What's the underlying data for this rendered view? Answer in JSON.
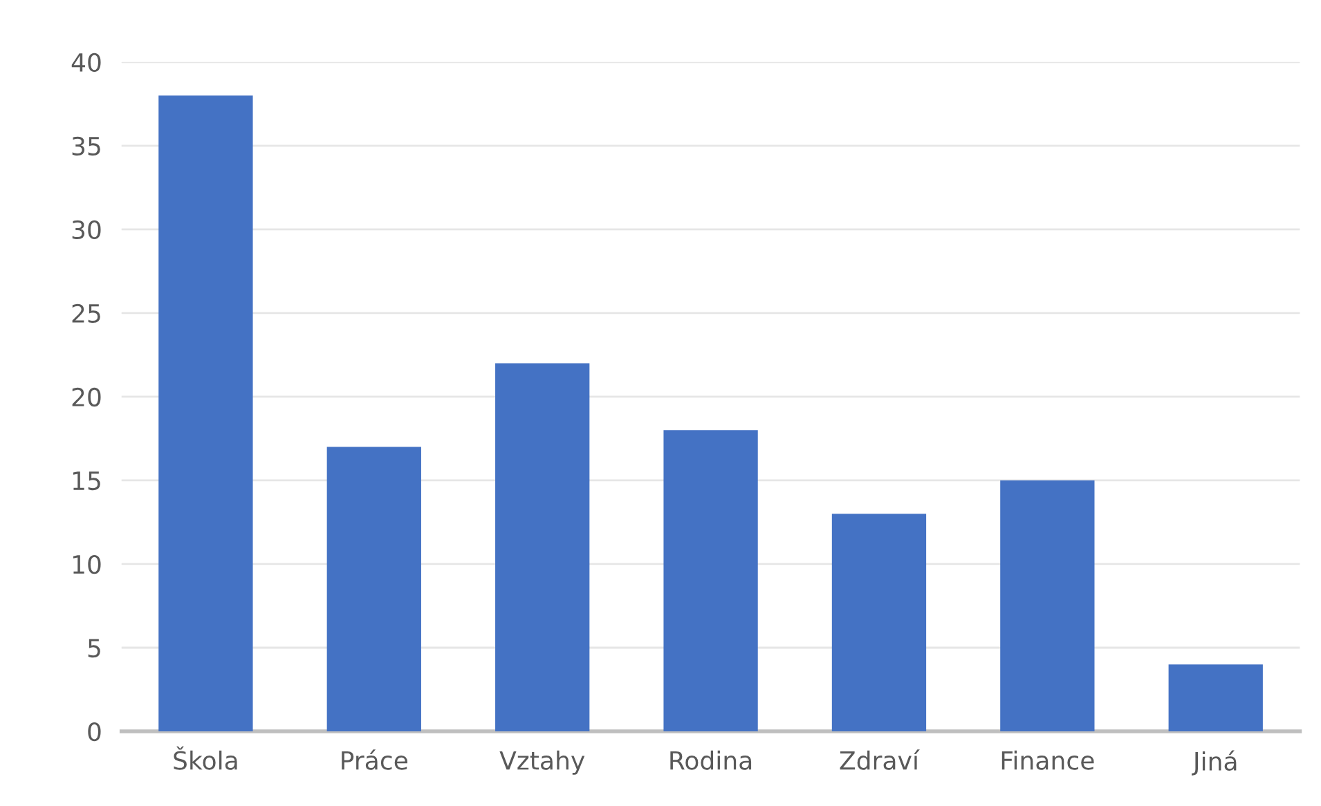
{
  "chart_data": {
    "type": "bar",
    "categories": [
      "Škola",
      "Práce",
      "Vztahy",
      "Rodina",
      "Zdraví",
      "Finance",
      "Jiná"
    ],
    "values": [
      38,
      17,
      22,
      18,
      13,
      15,
      4
    ],
    "color": "#4472c4",
    "ylim": [
      0,
      40
    ],
    "yticks": [
      0,
      5,
      10,
      15,
      20,
      25,
      30,
      35,
      40
    ],
    "grid": "y"
  }
}
